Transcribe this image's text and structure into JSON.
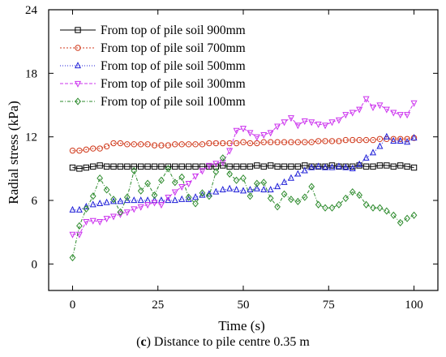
{
  "chart_data": {
    "type": "line",
    "title": "",
    "caption_tag": "c",
    "caption_text": "Distance to pile centre 0.35 m",
    "xlabel": "Time (s)",
    "ylabel": "Radial stress (kPa)",
    "xlim": [
      -7,
      107
    ],
    "ylim": [
      -2.5,
      24
    ],
    "xticks": [
      "0",
      "25",
      "50",
      "75",
      "100"
    ],
    "yticks": [
      "0",
      "6",
      "12",
      "18",
      "24"
    ],
    "grid": false,
    "legend_position": "top-left",
    "series": [
      {
        "name": "From top of pile soil 900mm",
        "color": "#000000",
        "marker": "square",
        "dash": "",
        "x": [
          0,
          2,
          4,
          6,
          8,
          10,
          12,
          14,
          16,
          18,
          20,
          22,
          24,
          26,
          28,
          30,
          32,
          34,
          36,
          38,
          40,
          42,
          44,
          46,
          48,
          50,
          52,
          54,
          56,
          58,
          60,
          62,
          64,
          66,
          68,
          70,
          72,
          74,
          76,
          78,
          80,
          82,
          84,
          86,
          88,
          90,
          92,
          94,
          96,
          98,
          100
        ],
        "y": [
          9.1,
          9.0,
          9.1,
          9.2,
          9.3,
          9.2,
          9.2,
          9.2,
          9.2,
          9.2,
          9.2,
          9.2,
          9.2,
          9.2,
          9.2,
          9.2,
          9.2,
          9.2,
          9.2,
          9.2,
          9.2,
          9.2,
          9.3,
          9.2,
          9.2,
          9.2,
          9.2,
          9.3,
          9.2,
          9.3,
          9.2,
          9.2,
          9.2,
          9.2,
          9.3,
          9.2,
          9.2,
          9.2,
          9.3,
          9.2,
          9.2,
          9.2,
          9.3,
          9.2,
          9.2,
          9.3,
          9.3,
          9.2,
          9.3,
          9.2,
          9.1
        ]
      },
      {
        "name": "From top of pile soil 700mm",
        "color": "#d03a1c",
        "marker": "circle",
        "dash": "2,2",
        "x": [
          0,
          2,
          4,
          6,
          8,
          10,
          12,
          14,
          16,
          18,
          20,
          22,
          24,
          26,
          28,
          30,
          32,
          34,
          36,
          38,
          40,
          42,
          44,
          46,
          48,
          50,
          52,
          54,
          56,
          58,
          60,
          62,
          64,
          66,
          68,
          70,
          72,
          74,
          76,
          78,
          80,
          82,
          84,
          86,
          88,
          90,
          92,
          94,
          96,
          98,
          100
        ],
        "y": [
          10.7,
          10.7,
          10.8,
          10.9,
          10.9,
          11.1,
          11.4,
          11.4,
          11.3,
          11.3,
          11.3,
          11.3,
          11.2,
          11.2,
          11.2,
          11.3,
          11.3,
          11.3,
          11.3,
          11.3,
          11.4,
          11.4,
          11.4,
          11.4,
          11.4,
          11.5,
          11.4,
          11.4,
          11.5,
          11.5,
          11.5,
          11.5,
          11.5,
          11.5,
          11.5,
          11.5,
          11.6,
          11.6,
          11.6,
          11.6,
          11.7,
          11.7,
          11.7,
          11.7,
          11.7,
          11.8,
          11.8,
          11.8,
          11.8,
          11.8,
          11.9
        ]
      },
      {
        "name": "From top of pile soil 500mm",
        "color": "#2020d8",
        "marker": "triangle-up",
        "dash": "1,2",
        "x": [
          0,
          2,
          4,
          6,
          8,
          10,
          12,
          14,
          16,
          18,
          20,
          22,
          24,
          26,
          28,
          30,
          32,
          34,
          36,
          38,
          40,
          42,
          44,
          46,
          48,
          50,
          52,
          54,
          56,
          58,
          60,
          62,
          64,
          66,
          68,
          70,
          72,
          74,
          76,
          78,
          80,
          82,
          84,
          86,
          88,
          90,
          92,
          94,
          96,
          98,
          100
        ],
        "y": [
          5.1,
          5.1,
          5.4,
          5.6,
          5.7,
          5.8,
          5.9,
          5.9,
          6.0,
          6.0,
          6.0,
          6.0,
          6.0,
          6.0,
          6.0,
          6.0,
          6.1,
          6.1,
          6.3,
          6.5,
          6.6,
          6.8,
          7.0,
          7.1,
          7.0,
          6.9,
          7.0,
          7.1,
          7.0,
          7.0,
          7.3,
          7.7,
          8.1,
          8.5,
          8.8,
          9.1,
          9.2,
          9.1,
          9.1,
          9.2,
          9.1,
          9.0,
          9.4,
          10.0,
          10.5,
          11.1,
          12.0,
          11.6,
          11.6,
          11.5,
          11.9
        ]
      },
      {
        "name": "From top of pile soil 300mm",
        "color": "#cc33ee",
        "marker": "triangle-down",
        "dash": "4,2",
        "x": [
          0,
          2,
          4,
          6,
          8,
          10,
          12,
          14,
          16,
          18,
          20,
          22,
          24,
          26,
          28,
          30,
          32,
          34,
          36,
          38,
          40,
          42,
          44,
          46,
          48,
          50,
          52,
          54,
          56,
          58,
          60,
          62,
          64,
          66,
          68,
          70,
          72,
          74,
          76,
          78,
          80,
          82,
          84,
          86,
          88,
          90,
          92,
          94,
          96,
          98,
          100
        ],
        "y": [
          2.8,
          2.8,
          4.0,
          4.1,
          4.0,
          4.3,
          4.5,
          4.7,
          4.9,
          5.2,
          5.4,
          5.6,
          5.8,
          5.6,
          6.3,
          6.8,
          7.3,
          7.6,
          8.3,
          8.8,
          9.3,
          9.5,
          9.6,
          10.7,
          12.6,
          12.8,
          12.4,
          12.0,
          12.2,
          12.4,
          13.0,
          13.4,
          13.8,
          13.1,
          13.5,
          13.4,
          13.2,
          13.1,
          13.4,
          13.6,
          14.1,
          14.3,
          14.6,
          15.6,
          14.8,
          15.0,
          14.6,
          14.3,
          14.1,
          14.1,
          15.2
        ]
      },
      {
        "name": "From top of pile soil 100mm",
        "color": "#2e8b2e",
        "marker": "diamond",
        "dash": "4,2,1,2",
        "x": [
          0,
          2,
          4,
          6,
          8,
          10,
          12,
          14,
          16,
          18,
          20,
          22,
          24,
          26,
          28,
          30,
          32,
          34,
          36,
          38,
          40,
          42,
          44,
          46,
          48,
          50,
          52,
          54,
          56,
          58,
          60,
          62,
          64,
          66,
          68,
          70,
          72,
          74,
          76,
          78,
          80,
          82,
          84,
          86,
          88,
          90,
          92,
          94,
          96,
          98,
          100
        ],
        "y": [
          0.6,
          3.6,
          5.2,
          6.4,
          8.1,
          7.0,
          6.1,
          4.9,
          6.3,
          8.8,
          6.9,
          7.6,
          6.5,
          7.9,
          9.0,
          7.7,
          8.2,
          6.3,
          5.7,
          6.7,
          6.4,
          8.7,
          10.0,
          8.5,
          7.9,
          8.1,
          6.4,
          7.6,
          7.7,
          6.2,
          5.4,
          6.6,
          6.1,
          5.9,
          6.3,
          7.3,
          5.6,
          5.3,
          5.3,
          5.6,
          6.2,
          6.8,
          6.5,
          5.6,
          5.3,
          5.3,
          5.0,
          4.6,
          3.9,
          4.3,
          4.6
        ]
      }
    ]
  }
}
